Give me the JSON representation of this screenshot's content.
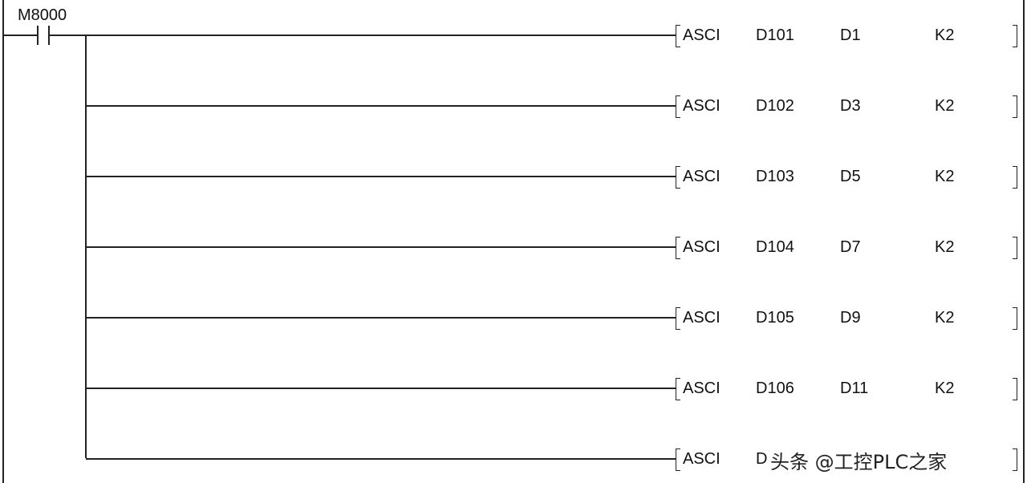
{
  "contact": {
    "label": "M8000",
    "type": "normally-open"
  },
  "rungs": [
    {
      "instruction": "ASCI",
      "op1": "D101",
      "op2": "D1",
      "op3": "K2"
    },
    {
      "instruction": "ASCI",
      "op1": "D102",
      "op2": "D3",
      "op3": "K2"
    },
    {
      "instruction": "ASCI",
      "op1": "D103",
      "op2": "D5",
      "op3": "K2"
    },
    {
      "instruction": "ASCI",
      "op1": "D104",
      "op2": "D7",
      "op3": "K2"
    },
    {
      "instruction": "ASCI",
      "op1": "D105",
      "op2": "D9",
      "op3": "K2"
    },
    {
      "instruction": "ASCI",
      "op1": "D106",
      "op2": "D11",
      "op3": "K2"
    },
    {
      "instruction": "ASCI",
      "op1": "D",
      "op2": "",
      "op3": ""
    }
  ],
  "watermark": "头条 @工控PLC之家"
}
